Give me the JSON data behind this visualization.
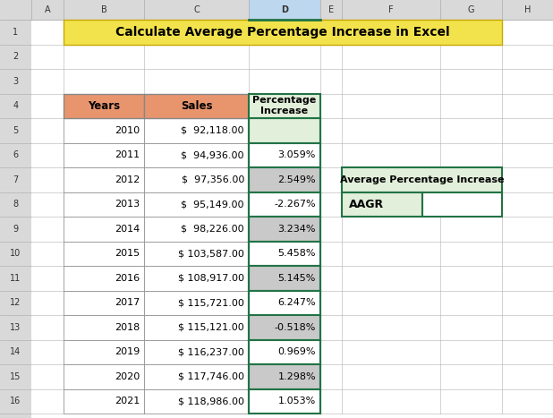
{
  "title": "Calculate Average Percentage Increase in Excel",
  "title_bg": "#F2E34C",
  "header_bg": "#E8956D",
  "col_headers": [
    "Years",
    "Sales",
    "Percentage\nIncrease"
  ],
  "years": [
    2010,
    2011,
    2012,
    2013,
    2014,
    2015,
    2016,
    2017,
    2018,
    2019,
    2020,
    2021
  ],
  "sales": [
    "$  92,118.00",
    "$  94,936.00",
    "$  97,356.00",
    "$  95,149.00",
    "$  98,226.00",
    "$ 103,587.00",
    "$ 108,917.00",
    "$ 115,721.00",
    "$ 115,121.00",
    "$ 116,237.00",
    "$ 117,746.00",
    "$ 118,986.00"
  ],
  "pct_increase": [
    "",
    "3.059%",
    "2.549%",
    "-2.267%",
    "3.234%",
    "5.458%",
    "5.145%",
    "6.247%",
    "-0.518%",
    "0.969%",
    "1.298%",
    "1.053%"
  ],
  "pct_col_bg_green": "#E2EFDA",
  "pct_col_bg_gray": "#C9C9C9",
  "header_bg_color": "#E8956D",
  "side_table_header": "Average Percentage Increase",
  "side_table_label": "AAGR",
  "side_table_header_bg": "#E2EFDA",
  "col_line_color_D": "#217346",
  "fig_bg": "#FFFFFF",
  "col_header_bg": "#D9D9D9",
  "row_header_bg": "#D9D9D9",
  "grid_line_color": "#B0B0B0",
  "col_D_header_bg": "#BDD7EE",
  "col_D_header_line": "#217346"
}
